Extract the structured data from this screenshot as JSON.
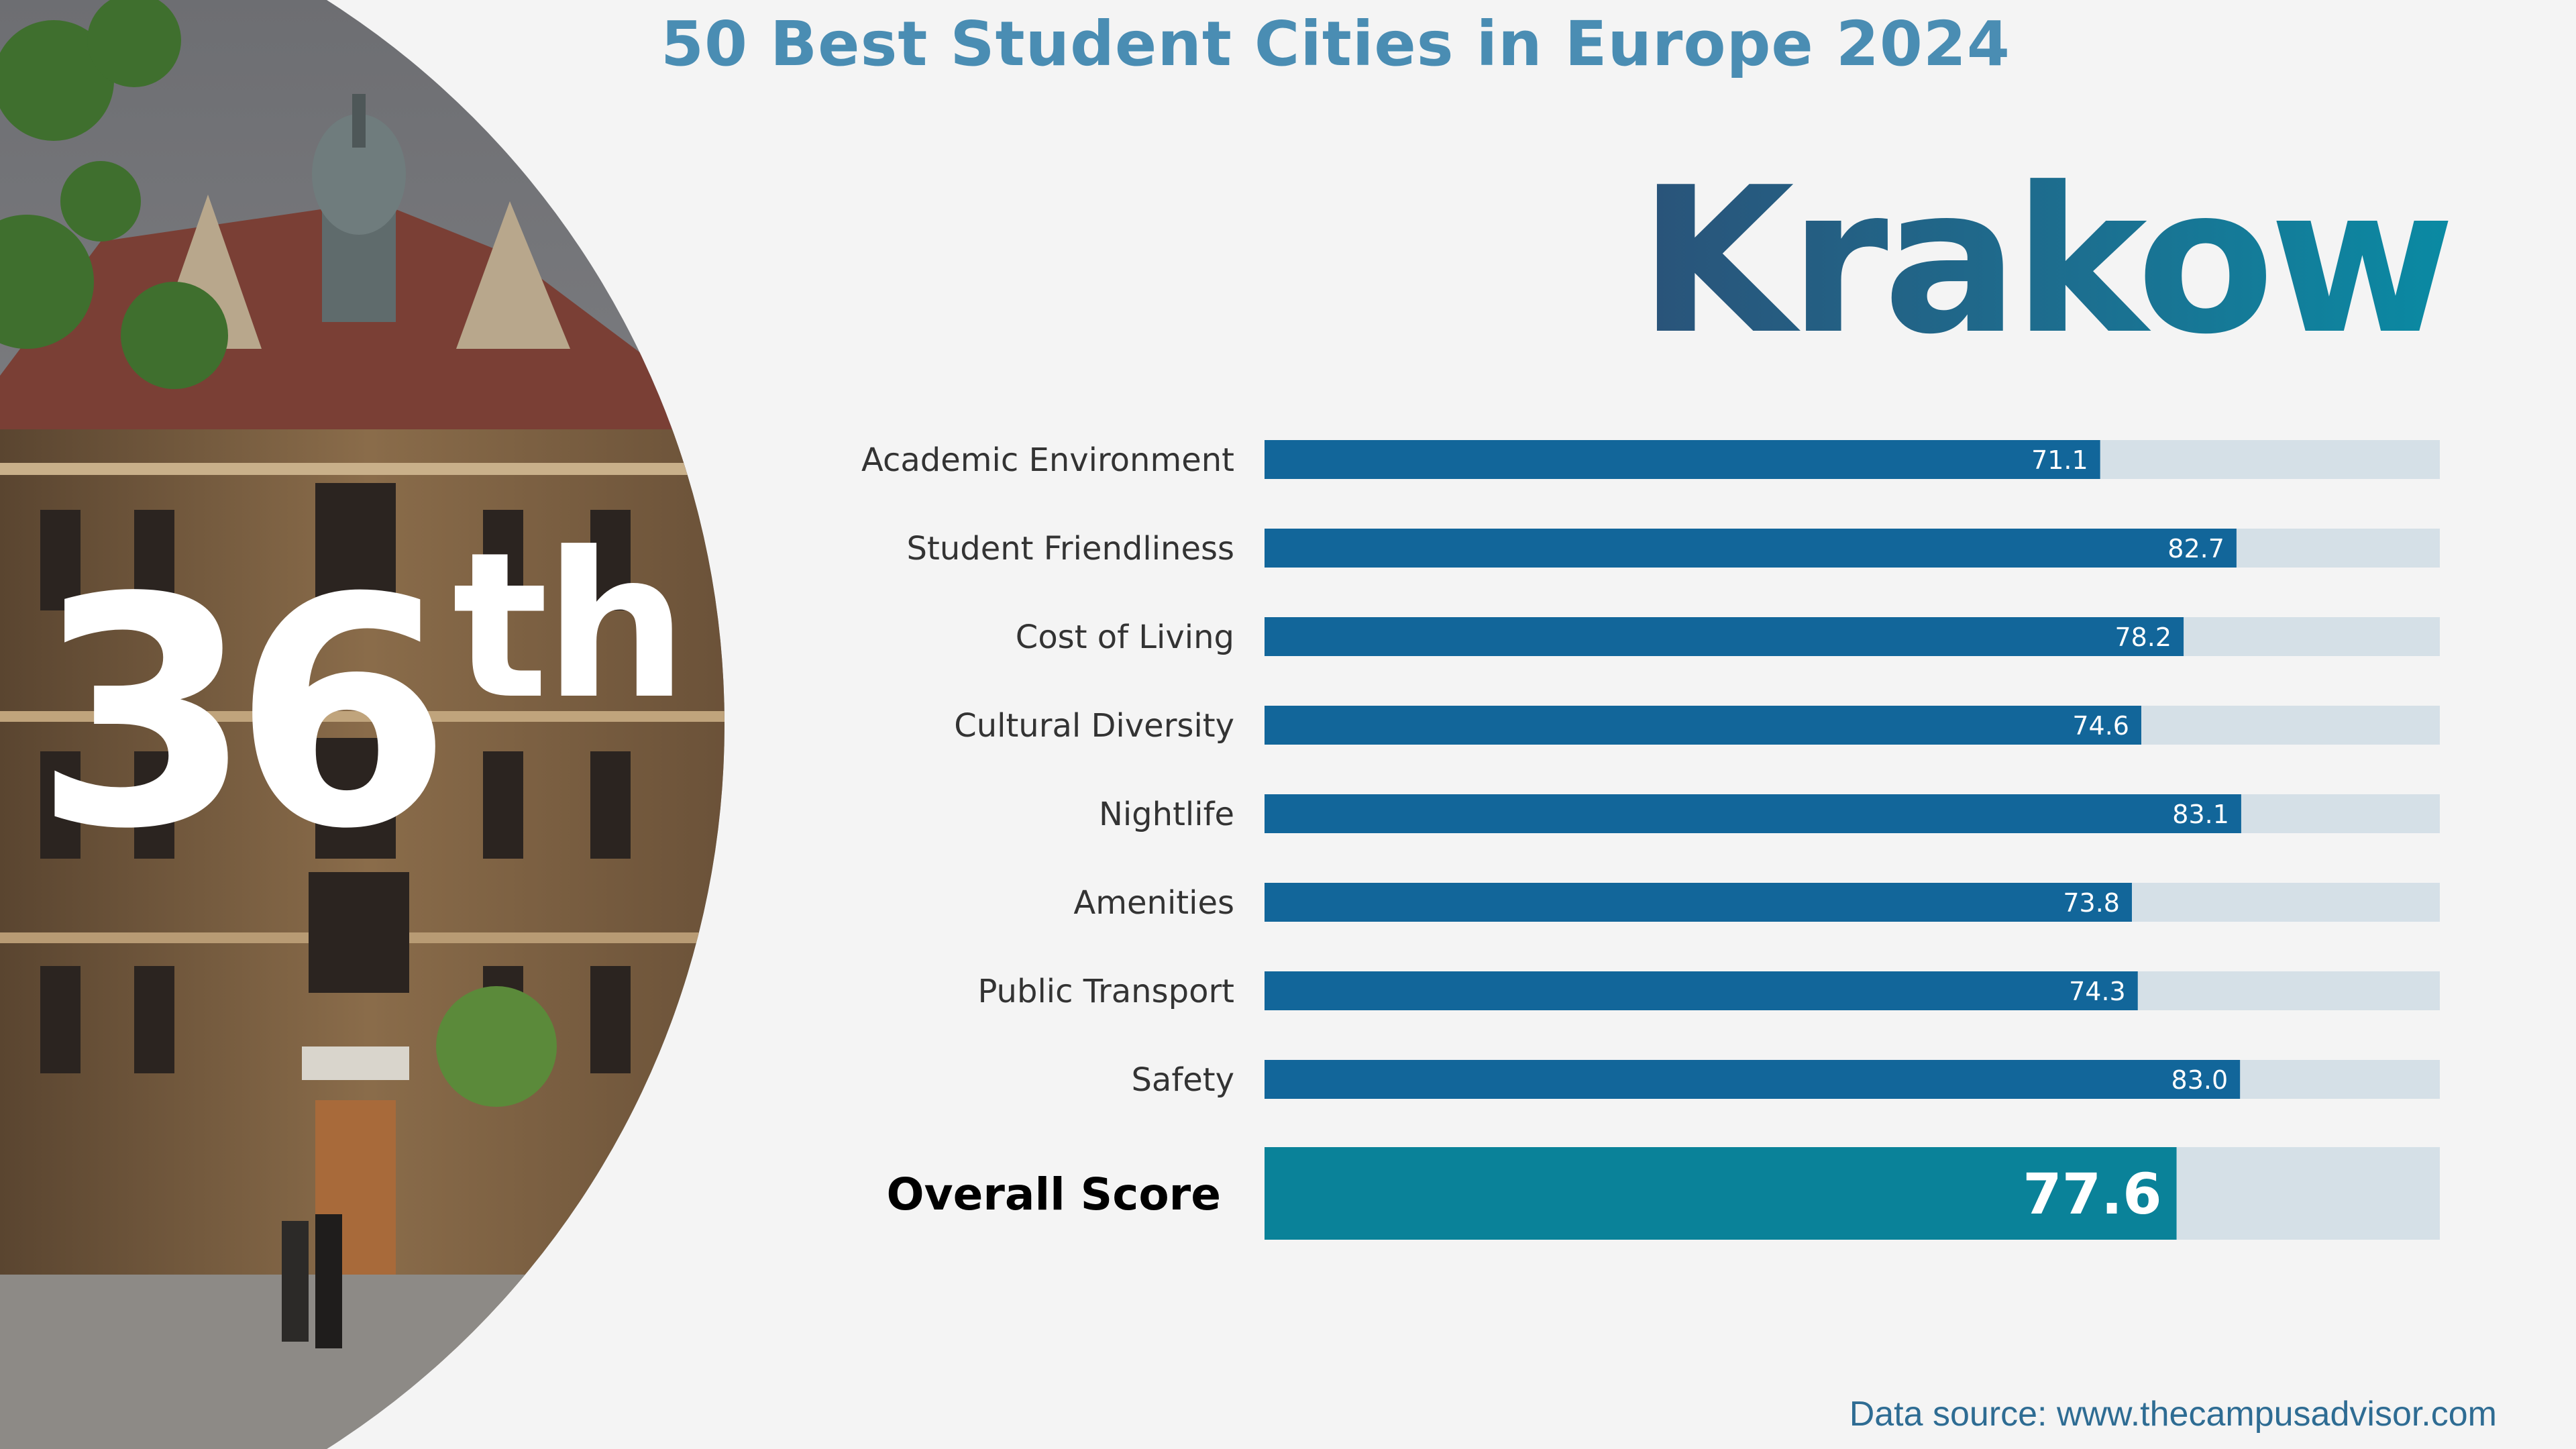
{
  "page_title": "50 Best Student Cities in Europe 2024",
  "city": "Krakow",
  "rank": {
    "number": "36",
    "suffix": "th"
  },
  "source_text": "Data source: www.thecampusadvisor.com",
  "colors": {
    "bar": "#12669a",
    "overall_bar": "#0a8299",
    "track": "#d5e0e7",
    "title": "#4a8db3"
  },
  "chart_data": {
    "type": "bar",
    "orientation": "horizontal",
    "title": "",
    "xlim": [
      0,
      100
    ],
    "grid": false,
    "categories": [
      "Academic Environment",
      "Student Friendliness",
      "Cost of Living",
      "Cultural Diversity",
      "Nightlife",
      "Amenities",
      "Public Transport",
      "Safety"
    ],
    "values": [
      71.1,
      82.7,
      78.2,
      74.6,
      83.1,
      73.8,
      74.3,
      83.0
    ],
    "labels": [
      "71.1",
      "82.7",
      "78.2",
      "74.6",
      "83.1",
      "73.8",
      "74.3",
      "83.0"
    ],
    "overall": {
      "label": "Overall Score",
      "value": 77.6,
      "display": "77.6"
    }
  }
}
